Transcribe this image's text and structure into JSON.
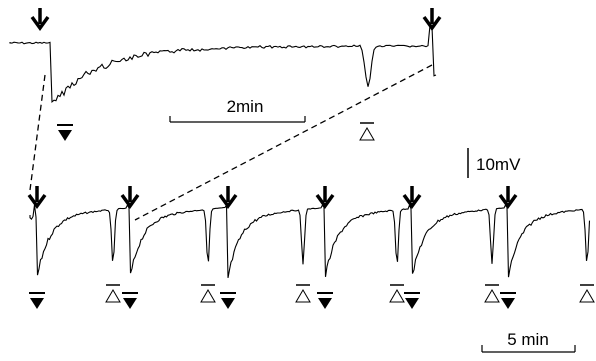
{
  "scale_bars": {
    "time_top": "2min",
    "voltage": "10mV",
    "time_bottom": "5 min"
  }
}
